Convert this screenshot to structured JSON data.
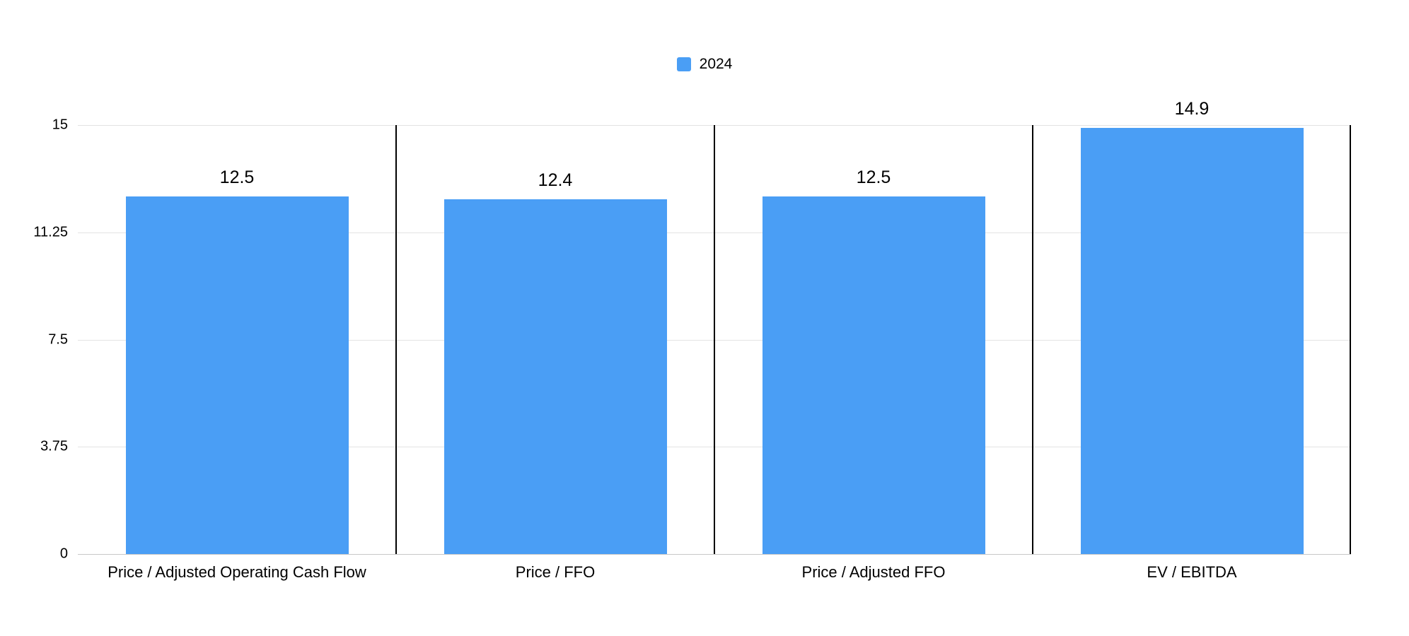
{
  "chart_data": {
    "type": "bar",
    "title": "",
    "categories": [
      "Price / Adjusted Operating Cash Flow",
      "Price / FFO",
      "Price / Adjusted FFO",
      "EV / EBITDA"
    ],
    "series": [
      {
        "name": "2024",
        "values": [
          12.5,
          12.4,
          12.5,
          14.9
        ]
      }
    ],
    "value_labels": [
      "12.5",
      "12.4",
      "12.5",
      "14.9"
    ],
    "y_ticks": [
      0,
      3.75,
      7.5,
      11.25,
      15
    ],
    "y_tick_labels": [
      "0",
      "3.75",
      "7.5",
      "11.25",
      "15"
    ],
    "ylim": [
      0,
      15
    ],
    "xlabel": "",
    "ylabel": "",
    "legend_position": "top-center",
    "grid": "horizontal",
    "panel_dividers": true,
    "colors": {
      "bar": "#4a9ef5",
      "gridline": "#e3e3e3",
      "baseline": "#c8c8c8",
      "divider": "#000000",
      "text": "#000000",
      "background": "#ffffff"
    }
  }
}
